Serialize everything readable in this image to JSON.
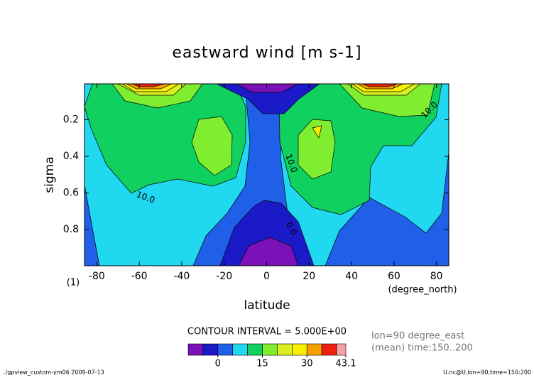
{
  "chart_data": {
    "type": "contour",
    "title": "eastward wind [m s-1]",
    "xlabel": "latitude",
    "xunits": "(degree_north)",
    "ylabel": "sigma",
    "yunits": "(1)",
    "xlim": [
      -85.8,
      85.8
    ],
    "xticks": [
      -80,
      -60,
      -40,
      -20,
      0,
      20,
      40,
      60,
      80
    ],
    "ylim": [
      0.997,
      0.004
    ],
    "yticks": [
      0.2,
      0.4,
      0.6,
      0.8
    ],
    "contour_labels": [
      "10.0",
      "10.0",
      "10.0",
      "0.0"
    ],
    "colorbar": {
      "title": "CONTOUR INTERVAL = 5.000E+00",
      "levels": [
        -10,
        -5,
        0,
        5,
        10,
        15,
        20,
        25,
        30,
        35,
        40,
        43.1
      ],
      "colors": [
        "#7a10b8",
        "#1a1ac8",
        "#2060e8",
        "#20d8f0",
        "#10d060",
        "#80ee30",
        "#d8f020",
        "#f8f000",
        "#f8a000",
        "#f02010",
        "#f8a0a8"
      ],
      "ticks": [
        0,
        15,
        30,
        43.1
      ]
    },
    "info": [
      "lon=90 degree_east",
      "(mean) time:150..200"
    ],
    "footer_left": "./gpview_custom-ym06  2009-07-13",
    "footer_right": "U.nc@U,lon=90,time=150:200"
  }
}
